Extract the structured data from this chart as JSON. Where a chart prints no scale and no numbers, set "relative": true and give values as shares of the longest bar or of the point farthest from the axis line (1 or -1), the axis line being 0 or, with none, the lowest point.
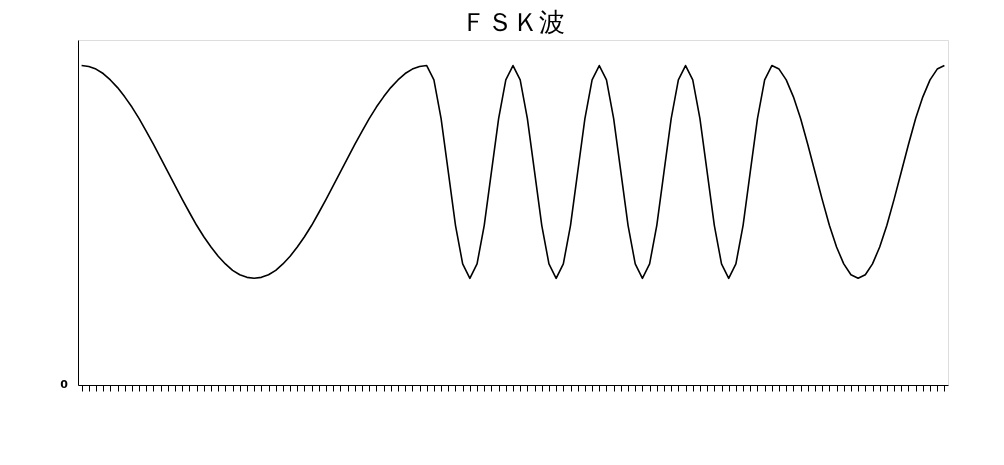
{
  "chart_data": {
    "type": "line",
    "title": "ＦＳＫ波",
    "relative": true,
    "categories": [
      null,
      null,
      null,
      null,
      null,
      null,
      null,
      null,
      null,
      null,
      null,
      null,
      null,
      null,
      null,
      null,
      null,
      null,
      null,
      null,
      null,
      null,
      null,
      null,
      null,
      null,
      null,
      null,
      null,
      null,
      null,
      null,
      null,
      null,
      null,
      null,
      null,
      null,
      null,
      null,
      null,
      null,
      null,
      null,
      null,
      null,
      null,
      null,
      null,
      null,
      null,
      null,
      null,
      null,
      null,
      null,
      null,
      null,
      null,
      null,
      null,
      null,
      null,
      null,
      null,
      null,
      null,
      null,
      null,
      null,
      null,
      null,
      null,
      null,
      null,
      null,
      null,
      null,
      null,
      null,
      null,
      null,
      null,
      null,
      null,
      null,
      null,
      null,
      null,
      null,
      null,
      null,
      null,
      null,
      null,
      null,
      null,
      null,
      null,
      null,
      null,
      null,
      null,
      null,
      null,
      null,
      null,
      null,
      null,
      null,
      null,
      null,
      null,
      null,
      null,
      null,
      null,
      null,
      null,
      null,
      null
    ],
    "series": [
      {
        "color": "#000000",
        "values": [
          1.0,
          0.997,
          0.989,
          0.975,
          0.955,
          0.931,
          0.902,
          0.87,
          0.834,
          0.794,
          0.753,
          0.71,
          0.667,
          0.624,
          0.581,
          0.54,
          0.5,
          0.464,
          0.432,
          0.403,
          0.379,
          0.359,
          0.345,
          0.337,
          0.334,
          0.337,
          0.345,
          0.359,
          0.379,
          0.403,
          0.432,
          0.464,
          0.5,
          0.54,
          0.581,
          0.624,
          0.667,
          0.71,
          0.753,
          0.794,
          0.834,
          0.87,
          0.902,
          0.931,
          0.955,
          0.975,
          0.989,
          0.997,
          1.0,
          0.955,
          0.834,
          0.667,
          0.5,
          0.379,
          0.334,
          0.379,
          0.5,
          0.667,
          0.834,
          0.955,
          1.0,
          0.955,
          0.834,
          0.667,
          0.5,
          0.379,
          0.334,
          0.379,
          0.5,
          0.667,
          0.834,
          0.955,
          1.0,
          0.955,
          0.834,
          0.667,
          0.5,
          0.379,
          0.334,
          0.379,
          0.5,
          0.667,
          0.834,
          0.955,
          1.0,
          0.955,
          0.834,
          0.667,
          0.5,
          0.379,
          0.334,
          0.379,
          0.5,
          0.667,
          0.834,
          0.955,
          1.0,
          0.989,
          0.955,
          0.902,
          0.834,
          0.753,
          0.667,
          0.581,
          0.5,
          0.432,
          0.379,
          0.345,
          0.334,
          0.345,
          0.379,
          0.432,
          0.5,
          0.581,
          0.667,
          0.753,
          0.834,
          0.902,
          0.955,
          0.989,
          1.0
        ]
      }
    ],
    "annotations": [
      "0"
    ],
    "marker": "none",
    "line_style": "solid",
    "grid": false,
    "legend": false
  }
}
